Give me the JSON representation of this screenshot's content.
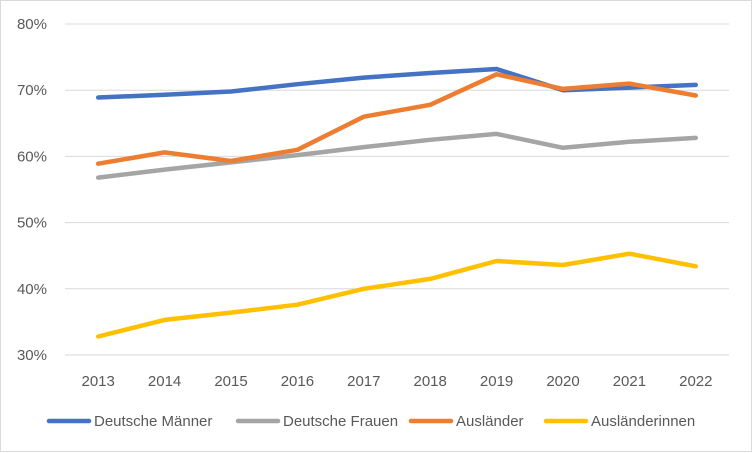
{
  "chart_data": {
    "type": "line",
    "categories": [
      "2013",
      "2014",
      "2015",
      "2016",
      "2017",
      "2018",
      "2019",
      "2020",
      "2021",
      "2022"
    ],
    "ylim": [
      30,
      80
    ],
    "yticks": [
      30,
      40,
      50,
      60,
      70,
      80
    ],
    "ytick_labels": [
      "30%",
      "40%",
      "50%",
      "60%",
      "70%",
      "80%"
    ],
    "grid": true,
    "legend_position": "bottom",
    "series": [
      {
        "name": "Deutsche Männer",
        "color": "#4472C4",
        "values": [
          68.9,
          69.3,
          69.8,
          70.9,
          71.9,
          72.6,
          73.2,
          70.0,
          70.4,
          70.8
        ]
      },
      {
        "name": "Deutsche Frauen",
        "color": "#A5A5A5",
        "values": [
          56.8,
          58.0,
          59.1,
          60.2,
          61.4,
          62.5,
          63.4,
          61.3,
          62.2,
          62.8
        ]
      },
      {
        "name": "Ausländer",
        "color": "#ED7D31",
        "values": [
          58.9,
          60.6,
          59.3,
          61.0,
          66.0,
          67.8,
          72.4,
          70.2,
          71.0,
          69.2
        ]
      },
      {
        "name": "Ausländerinnen",
        "color": "#FFC000",
        "values": [
          32.8,
          35.3,
          36.4,
          37.6,
          40.0,
          41.5,
          44.2,
          43.6,
          45.3,
          43.4
        ]
      }
    ]
  }
}
